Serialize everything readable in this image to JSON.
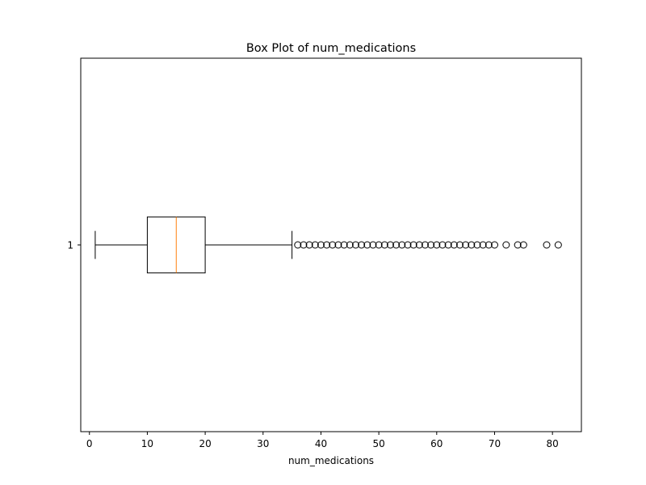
{
  "chart_data": {
    "type": "box",
    "orientation": "horizontal",
    "title": "Box Plot of num_medications",
    "xlabel": "num_medications",
    "ylabel": "",
    "xlim": [
      -1.5,
      85
    ],
    "x_ticks": [
      0,
      10,
      20,
      30,
      40,
      50,
      60,
      70,
      80
    ],
    "y_ticks": [
      "1"
    ],
    "grid": false,
    "series": [
      {
        "category": "1",
        "whisker_low": 1,
        "q1": 10,
        "median": 15,
        "q3": 20,
        "whisker_high": 35,
        "outliers": [
          36,
          37,
          38,
          39,
          40,
          41,
          42,
          43,
          44,
          45,
          46,
          47,
          48,
          49,
          50,
          51,
          52,
          53,
          54,
          55,
          56,
          57,
          58,
          59,
          60,
          61,
          62,
          63,
          64,
          65,
          66,
          67,
          68,
          69,
          70,
          72,
          74,
          75,
          79,
          81
        ]
      }
    ],
    "colors": {
      "box": "#000000",
      "median": "#ff7f0e",
      "outlier_edge": "#000000",
      "outlier_fill": "none"
    }
  }
}
